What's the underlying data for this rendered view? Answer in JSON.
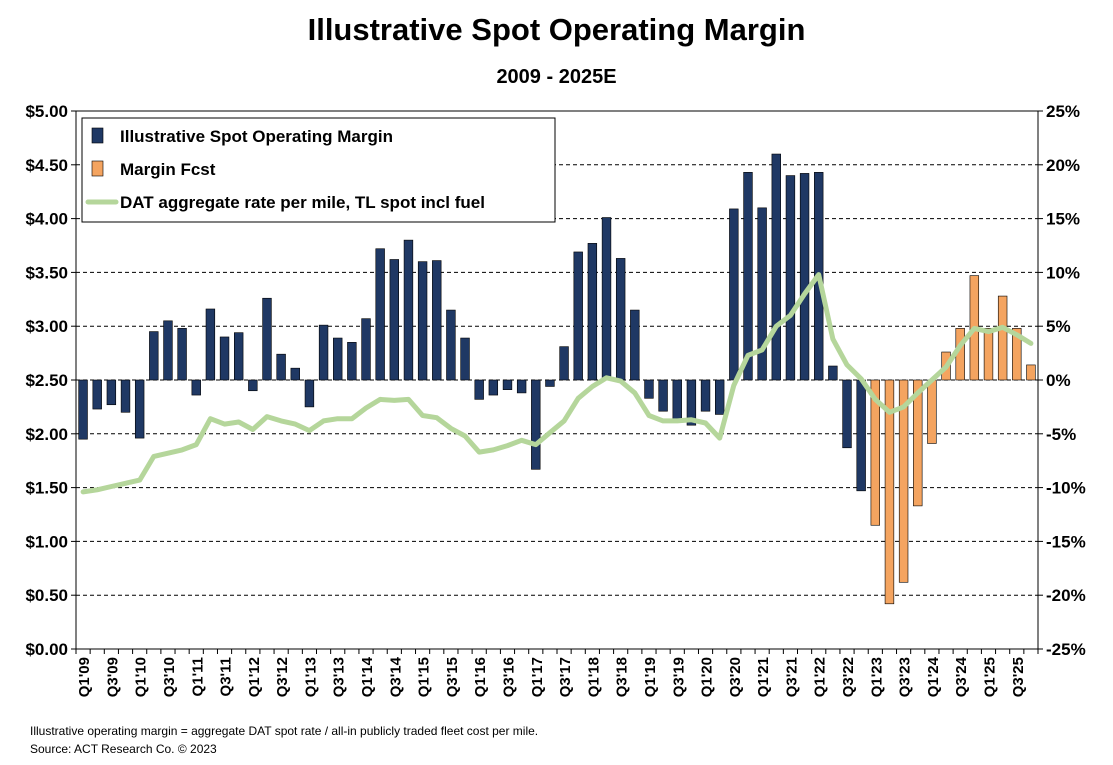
{
  "chart_data": {
    "type": "bar",
    "title": "Illustrative Spot Operating Margin",
    "subtitle": "2009 - 2025E",
    "categories": [
      "Q1'09",
      "Q2'09",
      "Q3'09",
      "Q4'09",
      "Q1'10",
      "Q2'10",
      "Q3'10",
      "Q4'10",
      "Q1'11",
      "Q2'11",
      "Q3'11",
      "Q4'11",
      "Q1'12",
      "Q2'12",
      "Q3'12",
      "Q4'12",
      "Q1'13",
      "Q2'13",
      "Q3'13",
      "Q4'13",
      "Q1'14",
      "Q2'14",
      "Q3'14",
      "Q4'14",
      "Q1'15",
      "Q2'15",
      "Q3'15",
      "Q4'15",
      "Q1'16",
      "Q2'16",
      "Q3'16",
      "Q4'16",
      "Q1'17",
      "Q2'17",
      "Q3'17",
      "Q4'17",
      "Q1'18",
      "Q2'18",
      "Q3'18",
      "Q4'18",
      "Q1'19",
      "Q2'19",
      "Q3'19",
      "Q4'19",
      "Q1'20",
      "Q2'20",
      "Q3'20",
      "Q4'20",
      "Q1'21",
      "Q2'21",
      "Q3'21",
      "Q4'21",
      "Q1'22",
      "Q2'22",
      "Q3'22",
      "Q4'22",
      "Q1'23",
      "Q2'23",
      "Q3'23",
      "Q4'23",
      "Q1'24",
      "Q2'24",
      "Q3'24",
      "Q4'24",
      "Q1'25",
      "Q2'25",
      "Q3'25",
      "Q4'25"
    ],
    "tick_labels": [
      "Q1'09",
      "Q3'09",
      "Q1'10",
      "Q3'10",
      "Q1'11",
      "Q3'11",
      "Q1'12",
      "Q3'12",
      "Q1'13",
      "Q3'13",
      "Q1'14",
      "Q3'14",
      "Q1'15",
      "Q3'15",
      "Q1'16",
      "Q3'16",
      "Q1'17",
      "Q3'17",
      "Q1'18",
      "Q3'18",
      "Q1'19",
      "Q3'19",
      "Q1'20",
      "Q3'20",
      "Q1'21",
      "Q3'21",
      "Q1'22",
      "Q3'22",
      "Q1'23",
      "Q3'23",
      "Q1'24",
      "Q3'24",
      "Q1'25",
      "Q3'25"
    ],
    "series": [
      {
        "name": "Illustrative Spot Operating Margin",
        "axis": "right",
        "kind": "bar",
        "color": "#1f3864",
        "values": [
          -5.5,
          -2.7,
          -2.3,
          -3.0,
          -5.4,
          4.5,
          5.5,
          4.8,
          -1.4,
          6.6,
          4.0,
          4.4,
          -1.0,
          7.6,
          2.4,
          1.1,
          -2.5,
          5.1,
          3.9,
          3.5,
          5.7,
          12.2,
          11.2,
          13.0,
          11.0,
          11.1,
          6.5,
          3.9,
          -1.8,
          -1.4,
          -0.9,
          -1.2,
          -8.3,
          -0.6,
          3.1,
          11.9,
          12.7,
          15.1,
          11.3,
          6.5,
          -1.7,
          -2.9,
          -3.9,
          -4.2,
          -2.9,
          -3.2,
          15.9,
          19.3,
          16.0,
          21.0,
          19.0,
          19.2,
          19.3,
          1.3,
          -6.3,
          -10.3,
          -13.5,
          -20.8,
          -18.8,
          -11.7,
          -5.9,
          2.6,
          4.8,
          9.7,
          4.8,
          7.8,
          4.8,
          1.4
        ],
        "forecast_start_index": 56
      },
      {
        "name": "Margin Fcst",
        "kind": "bar",
        "color": "#f4a460"
      },
      {
        "name": "DAT aggregate rate per mile, TL spot incl fuel",
        "axis": "left",
        "kind": "line",
        "color": "#b5d69b",
        "values": [
          1.46,
          1.48,
          1.51,
          1.54,
          1.57,
          1.79,
          1.82,
          1.85,
          1.9,
          2.14,
          2.09,
          2.11,
          2.04,
          2.16,
          2.12,
          2.09,
          2.03,
          2.12,
          2.14,
          2.14,
          2.24,
          2.32,
          2.31,
          2.32,
          2.17,
          2.15,
          2.05,
          1.98,
          1.83,
          1.85,
          1.89,
          1.94,
          1.9,
          2.01,
          2.12,
          2.33,
          2.44,
          2.52,
          2.49,
          2.38,
          2.17,
          2.12,
          2.12,
          2.13,
          2.1,
          1.96,
          2.45,
          2.73,
          2.78,
          3.0,
          3.1,
          3.3,
          3.48,
          2.88,
          2.64,
          2.51,
          2.32,
          2.2,
          2.25,
          2.38,
          2.5,
          2.62,
          2.82,
          2.98,
          2.95,
          2.99,
          2.92,
          2.84
        ]
      }
    ],
    "left_axis": {
      "min": 0,
      "max": 5,
      "step": 0.5,
      "labels": [
        "$0.00",
        "$0.50",
        "$1.00",
        "$1.50",
        "$2.00",
        "$2.50",
        "$3.00",
        "$3.50",
        "$4.00",
        "$4.50",
        "$5.00"
      ]
    },
    "right_axis": {
      "min": -25,
      "max": 25,
      "step": 5,
      "labels": [
        "-25%",
        "-20%",
        "-15%",
        "-10%",
        "-5%",
        "0%",
        "5%",
        "10%",
        "15%",
        "20%",
        "25%"
      ]
    },
    "grid": "horizontal-dashed",
    "legend_position": "top-left"
  },
  "footnotes": {
    "line1": "Illustrative  operating  margin = aggregate  DAT  spot rate / all-in  publicly traded fleet cost per mile.",
    "line2": "Source:  ACT Research Co. © 2023"
  }
}
